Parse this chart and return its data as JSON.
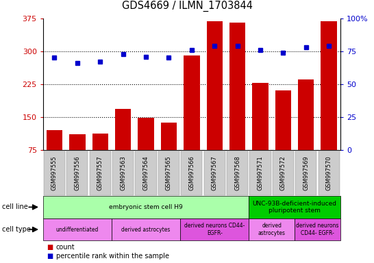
{
  "title": "GDS4669 / ILMN_1703844",
  "samples": [
    "GSM997555",
    "GSM997556",
    "GSM997557",
    "GSM997563",
    "GSM997564",
    "GSM997565",
    "GSM997566",
    "GSM997567",
    "GSM997568",
    "GSM997571",
    "GSM997572",
    "GSM997569",
    "GSM997570"
  ],
  "counts": [
    120,
    110,
    112,
    168,
    148,
    138,
    290,
    368,
    365,
    228,
    210,
    235,
    368
  ],
  "percentiles": [
    70,
    66,
    67,
    73,
    71,
    70,
    76,
    79,
    79,
    76,
    74,
    78,
    79
  ],
  "ylim_left": [
    75,
    375
  ],
  "ylim_right": [
    0,
    100
  ],
  "yticks_left": [
    75,
    150,
    225,
    300,
    375
  ],
  "yticks_right": [
    0,
    25,
    50,
    75,
    100
  ],
  "bar_color": "#cc0000",
  "dot_color": "#0000cc",
  "cell_line_groups": [
    {
      "label": "embryonic stem cell H9",
      "start": 0,
      "end": 9,
      "color": "#aaffaa"
    },
    {
      "label": "UNC-93B-deficient-induced\npluripotent stem",
      "start": 9,
      "end": 13,
      "color": "#00cc00"
    }
  ],
  "cell_type_groups": [
    {
      "label": "undifferentiated",
      "start": 0,
      "end": 3,
      "color": "#ee88ee"
    },
    {
      "label": "derived astrocytes",
      "start": 3,
      "end": 6,
      "color": "#ee88ee"
    },
    {
      "label": "derived neurons CD44-\nEGFR-",
      "start": 6,
      "end": 9,
      "color": "#dd55dd"
    },
    {
      "label": "derived\nastrocytes",
      "start": 9,
      "end": 11,
      "color": "#ee88ee"
    },
    {
      "label": "derived neurons\nCD44- EGFR-",
      "start": 11,
      "end": 13,
      "color": "#dd55dd"
    }
  ],
  "grid_dotted_at": [
    150,
    225,
    300
  ],
  "xlabel_color": "#cc0000",
  "ylabel_right_color": "#0000cc",
  "legend_count_label": "count",
  "legend_pct_label": "percentile rank within the sample",
  "xtick_bg": "#cccccc"
}
